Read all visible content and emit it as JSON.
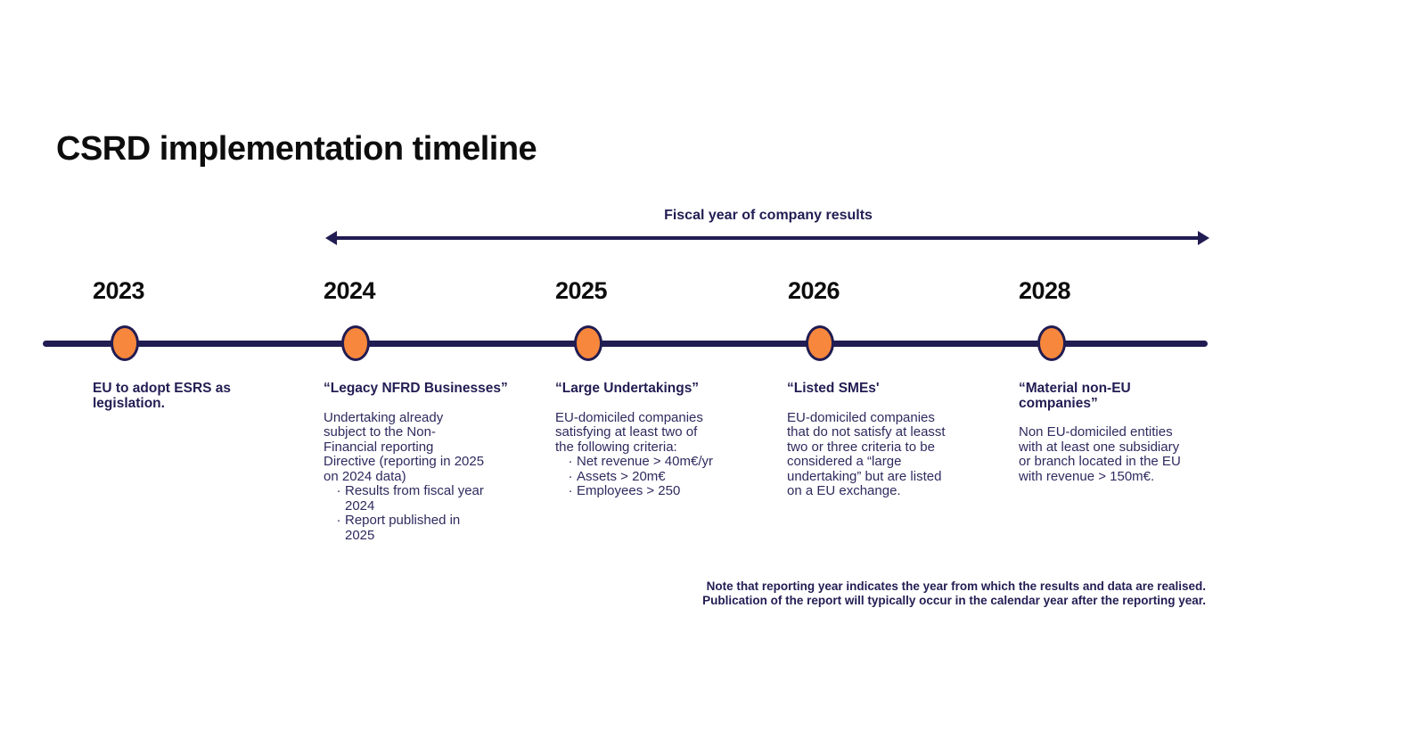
{
  "title": "CSRD implementation timeline",
  "arrow": {
    "label": "Fiscal year of company results"
  },
  "bullet_marker": "·",
  "colors": {
    "navy_line": "#211c52",
    "navy_text": "#2e2a5e",
    "navy_heading": "#221d53",
    "dot_orange": "#f6873c",
    "black_text": "#0d0d0d",
    "background": "#ffffff"
  },
  "timeline": {
    "columns": [
      {
        "year": "2023",
        "heading": "EU to adopt ESRS as\nlegislation.",
        "body": "",
        "bullets": []
      },
      {
        "year": "2024",
        "heading": "“Legacy NFRD Businesses”",
        "body": "Undertaking already\nsubject to the Non-\nFinancial reporting\nDirective (reporting in 2025\non 2024 data)",
        "bullets": [
          "Results from fiscal year\n2024",
          "Report published in\n2025"
        ]
      },
      {
        "year": "2025",
        "heading": "“Large Undertakings”",
        "body": "EU-domiciled companies\nsatisfying at least two of\nthe following criteria:",
        "bullets": [
          "Net revenue > 40m€/yr",
          "Assets > 20m€",
          "Employees > 250"
        ]
      },
      {
        "year": "2026",
        "heading": "“Listed SMEs'",
        "body": "EU-domiciled companies\nthat do not satisfy at leasst\ntwo or three criteria to be\nconsidered a “large\nundertaking” but are listed\non a EU exchange.",
        "bullets": []
      },
      {
        "year": "2028",
        "heading": "“Material non-EU\ncompanies”",
        "body": "Non EU-domiciled entities\nwith at least one subsidiary\nor branch located in the EU\nwith revenue > 150m€.",
        "bullets": []
      }
    ]
  },
  "note": {
    "line1": "Note that reporting year indicates the year from which the results and data are realised.",
    "line2": "Publication of the report will typically occur in the calendar year after the reporting year."
  }
}
